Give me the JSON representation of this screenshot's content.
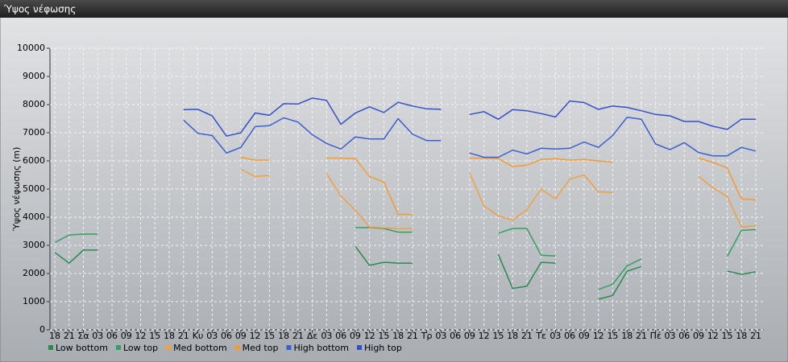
{
  "chart_data": {
    "type": "line",
    "title": "Ύψος νέφωσης",
    "y_label": "Ύψος νέφωσης (m)",
    "categories": [
      "18",
      "21",
      "Σα",
      "03",
      "06",
      "09",
      "12",
      "15",
      "18",
      "21",
      "Κυ",
      "03",
      "06",
      "09",
      "12",
      "15",
      "18",
      "21",
      "Δε",
      "03",
      "06",
      "09",
      "12",
      "15",
      "18",
      "21",
      "Τρ",
      "03",
      "06",
      "09",
      "12",
      "15",
      "18",
      "21",
      "Τε",
      "03",
      "06",
      "09",
      "12",
      "15",
      "18",
      "21",
      "Πέ",
      "03",
      "06",
      "09",
      "12",
      "15",
      "18",
      "21"
    ],
    "ylim": [
      0,
      10000
    ],
    "yticks": [
      0,
      1000,
      2000,
      3000,
      4000,
      5000,
      6000,
      7000,
      8000,
      9000,
      10000
    ],
    "grid": true,
    "legend": "bottom",
    "series": [
      {
        "name": "Low bottom",
        "color": "#2a8a52",
        "values": [
          2750,
          2370,
          2830,
          2830,
          null,
          null,
          null,
          null,
          null,
          null,
          null,
          null,
          null,
          null,
          null,
          null,
          null,
          null,
          null,
          null,
          null,
          2970,
          2290,
          2400,
          2370,
          2370,
          null,
          null,
          null,
          null,
          null,
          2680,
          1470,
          1550,
          2400,
          2370,
          null,
          null,
          1090,
          1220,
          2080,
          2250,
          null,
          null,
          null,
          null,
          null,
          2090,
          1970,
          2060
        ]
      },
      {
        "name": "Low top",
        "color": "#34a060",
        "values": [
          3100,
          3370,
          3400,
          3400,
          null,
          null,
          null,
          null,
          null,
          null,
          null,
          null,
          null,
          null,
          null,
          null,
          null,
          null,
          null,
          null,
          null,
          3630,
          3630,
          3600,
          3470,
          3470,
          null,
          null,
          null,
          null,
          null,
          3430,
          3600,
          3600,
          2650,
          2620,
          null,
          null,
          1430,
          1620,
          2270,
          2520,
          null,
          null,
          null,
          null,
          null,
          2600,
          3530,
          3560
        ]
      },
      {
        "name": "Med bottom",
        "color": "#f0a040",
        "values": [
          null,
          null,
          null,
          null,
          null,
          null,
          null,
          null,
          null,
          null,
          null,
          null,
          null,
          5700,
          5450,
          5480,
          null,
          null,
          null,
          5550,
          4750,
          4250,
          3650,
          3620,
          3600,
          3600,
          null,
          null,
          null,
          5570,
          4400,
          4050,
          3900,
          4270,
          5000,
          4650,
          5350,
          5500,
          4900,
          4880,
          null,
          null,
          null,
          null,
          null,
          5450,
          5050,
          4750,
          3650,
          3700
        ]
      },
      {
        "name": "Med top",
        "color": "#f39a30",
        "values": [
          null,
          null,
          null,
          null,
          null,
          null,
          null,
          null,
          null,
          null,
          null,
          null,
          null,
          6130,
          6030,
          6030,
          null,
          null,
          null,
          6100,
          6100,
          6080,
          5450,
          5250,
          4100,
          4100,
          null,
          null,
          null,
          6100,
          6100,
          6080,
          5800,
          5850,
          6050,
          6080,
          6030,
          6050,
          6000,
          5950,
          null,
          null,
          null,
          null,
          null,
          6100,
          5950,
          5750,
          4650,
          4620
        ]
      },
      {
        "name": "High bottom",
        "color": "#3a5fd0",
        "values": [
          null,
          null,
          null,
          null,
          null,
          null,
          null,
          null,
          null,
          7450,
          6980,
          6900,
          6280,
          6480,
          7220,
          7250,
          7530,
          7380,
          6930,
          6620,
          6420,
          6850,
          6780,
          6780,
          7500,
          6950,
          6720,
          6720,
          null,
          6280,
          6130,
          6130,
          6380,
          6250,
          6450,
          6420,
          6450,
          6670,
          6480,
          6900,
          7550,
          7480,
          6600,
          6400,
          6650,
          6300,
          6180,
          6180,
          6480,
          6350
        ]
      },
      {
        "name": "High top",
        "color": "#3350c8",
        "values": [
          null,
          null,
          null,
          null,
          null,
          null,
          null,
          null,
          null,
          7820,
          7830,
          7600,
          6880,
          7000,
          7700,
          7620,
          8030,
          8020,
          8230,
          8150,
          7300,
          7700,
          7920,
          7720,
          8080,
          7950,
          7850,
          7830,
          null,
          7650,
          7750,
          7480,
          7820,
          7780,
          7680,
          7560,
          8130,
          8070,
          7830,
          7950,
          7900,
          7780,
          7650,
          7600,
          7400,
          7400,
          7230,
          7120,
          7480,
          7480
        ]
      }
    ]
  }
}
